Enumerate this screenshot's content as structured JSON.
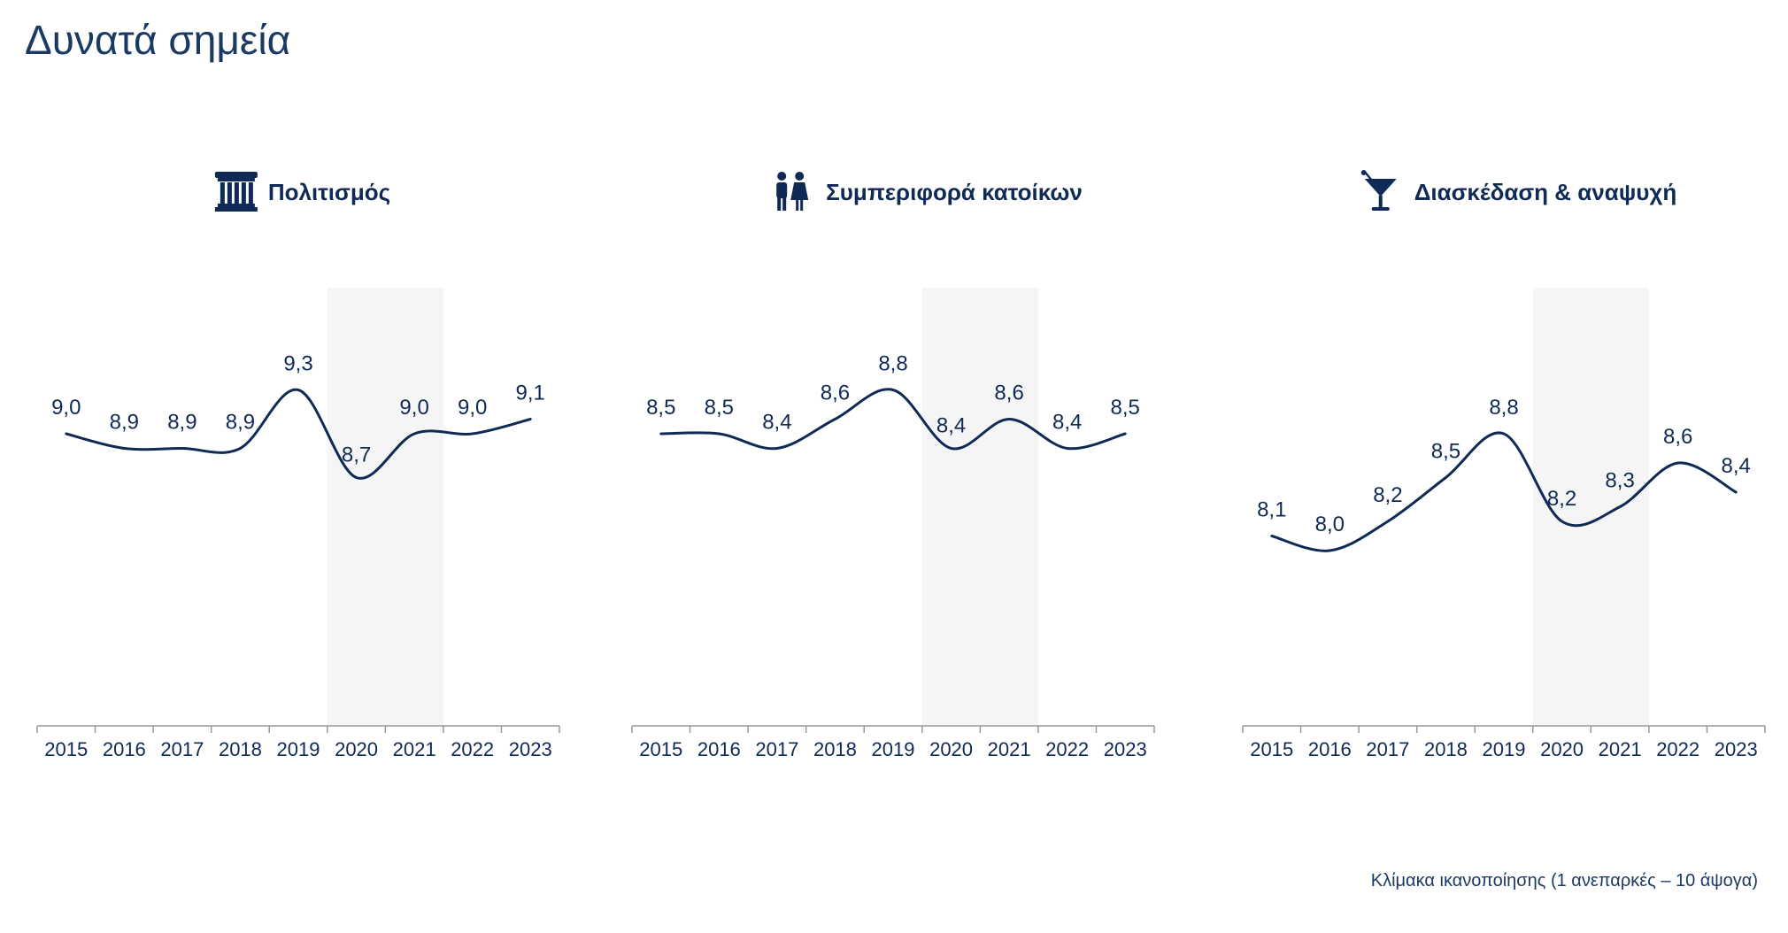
{
  "page": {
    "title": "Δυνατά σημεία",
    "footnote": "Κλίμακα ικανοποίησης (1 ανεπαρκές – 10 άψογα)"
  },
  "colors": {
    "primary": "#0f2a55",
    "title": "#1a3a64",
    "highlight_band": "#f5f5f5",
    "axis": "#999999"
  },
  "chart_data": [
    {
      "type": "line",
      "title": "Πολιτισμός",
      "icon": "column-icon",
      "categories": [
        "2015",
        "2016",
        "2017",
        "2018",
        "2019",
        "2020",
        "2021",
        "2022",
        "2023"
      ],
      "values": [
        9.0,
        8.9,
        8.9,
        8.9,
        9.3,
        8.7,
        9.0,
        9.0,
        9.1
      ],
      "data_labels": [
        "9,0",
        "8,9",
        "8,9",
        "8,9",
        "9,3",
        "8,7",
        "9,0",
        "9,0",
        "9,1"
      ],
      "highlight_categories": [
        "2020",
        "2021"
      ],
      "ylim": [
        7.0,
        10.0
      ]
    },
    {
      "type": "line",
      "title": "Συμπεριφορά κατοίκων",
      "icon": "people-icon",
      "categories": [
        "2015",
        "2016",
        "2017",
        "2018",
        "2019",
        "2020",
        "2021",
        "2022",
        "2023"
      ],
      "values": [
        8.5,
        8.5,
        8.4,
        8.6,
        8.8,
        8.4,
        8.6,
        8.4,
        8.5
      ],
      "data_labels": [
        "8,5",
        "8,5",
        "8,4",
        "8,6",
        "8,8",
        "8,4",
        "8,6",
        "8,4",
        "8,5"
      ],
      "highlight_categories": [
        "2020",
        "2021"
      ],
      "ylim": [
        6.5,
        9.5
      ]
    },
    {
      "type": "line",
      "title": "Διασκέδαση & αναψυχή",
      "icon": "cocktail-icon",
      "categories": [
        "2015",
        "2016",
        "2017",
        "2018",
        "2019",
        "2020",
        "2021",
        "2022",
        "2023"
      ],
      "values": [
        8.1,
        8.0,
        8.2,
        8.5,
        8.8,
        8.2,
        8.3,
        8.6,
        8.4
      ],
      "data_labels": [
        "8,1",
        "8,0",
        "8,2",
        "8,5",
        "8,8",
        "8,2",
        "8,3",
        "8,6",
        "8,4"
      ],
      "highlight_categories": [
        "2020",
        "2021"
      ],
      "ylim": [
        6.8,
        9.8
      ]
    }
  ]
}
